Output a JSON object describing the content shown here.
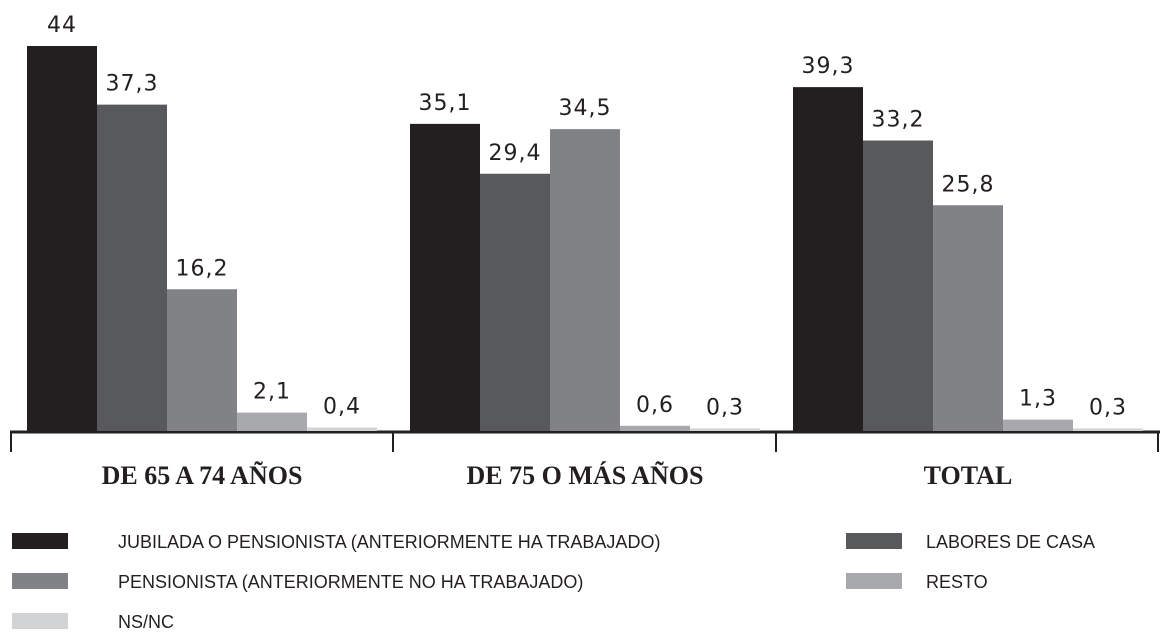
{
  "chart_data": {
    "type": "bar",
    "categories": [
      "DE 65 A 74 AÑOS",
      "DE 75 O MÁS AÑOS",
      "TOTAL"
    ],
    "ylim": [
      0,
      44
    ],
    "series": [
      {
        "name": "JUBILADA O PENSIONISTA (ANTERIORMENTE HA TRABAJADO)",
        "color": "#231f20",
        "values": [
          44,
          35.1,
          39.3
        ],
        "value_labels": [
          "44",
          "35,1",
          "39,3"
        ]
      },
      {
        "name": "LABORES DE CASA",
        "color": "#58595b",
        "values": [
          37.3,
          29.4,
          33.2
        ],
        "value_labels": [
          "37,3",
          "29,4",
          "33,2"
        ]
      },
      {
        "name": "PENSIONISTA (ANTERIORMENTE NO HA TRABAJADO)",
        "color": "#808285",
        "values": [
          16.2,
          34.5,
          25.8
        ],
        "value_labels": [
          "16,2",
          "34,5",
          "25,8"
        ]
      },
      {
        "name": "RESTO",
        "color": "#a7a9ac",
        "values": [
          2.1,
          0.6,
          1.3
        ],
        "value_labels": [
          "2,1",
          "0,6",
          "1,3"
        ]
      },
      {
        "name": "NS/NC",
        "color": "#d1d3d4",
        "values": [
          0.4,
          0.3,
          0.3
        ],
        "value_labels": [
          "0,4",
          "0,3",
          "0,3"
        ]
      }
    ]
  }
}
